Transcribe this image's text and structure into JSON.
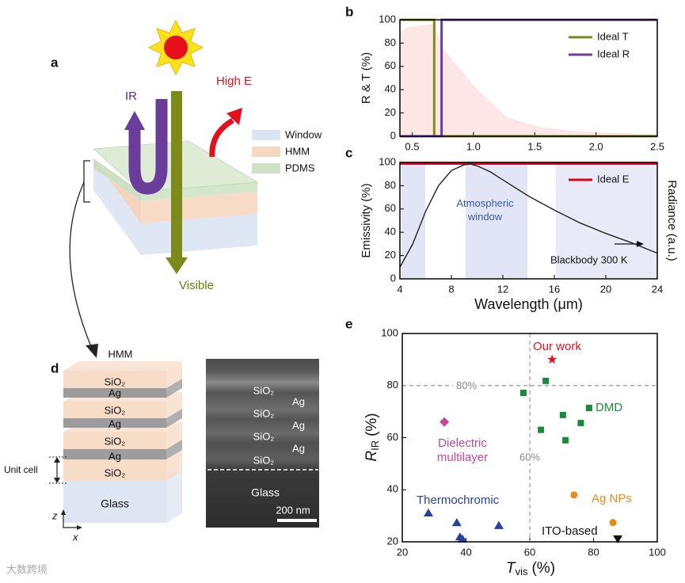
{
  "panel_labels": [
    "a",
    "b",
    "c",
    "d",
    "e"
  ],
  "diagram_a": {
    "ir": "IR",
    "high_e": "High E",
    "visible": "Visible",
    "legend": [
      "Window",
      "HMM",
      "PDMS"
    ]
  },
  "diagram_d": {
    "title": "HMM",
    "layers": [
      "SiO₂",
      "Ag",
      "SiO₂",
      "Ag",
      "SiO₂",
      "Ag",
      "SiO₂"
    ],
    "unit_cell": "Unit cell",
    "substrate": "Glass",
    "axes": [
      "z",
      "x"
    ],
    "sem_layers": [
      "SiO₂",
      "Ag",
      "SiO₂",
      "Ag",
      "SiO₂",
      "Ag",
      "SiO₂"
    ],
    "sem_substrate": "Glass",
    "scale_bar": "200 nm"
  },
  "watermark": "大数跨境",
  "chart_data": [
    {
      "type": "line",
      "y_label": "R & T (%)",
      "xlim": [
        0.4,
        2.5
      ],
      "xticks": [
        0.5,
        {
          "value": 1,
          "label": "1.0"
        },
        1.5,
        {
          "value": 2,
          "label": "2.0"
        },
        2.5
      ],
      "ylim": [
        0,
        100
      ],
      "yticks": [
        0,
        20,
        40,
        60,
        80,
        100
      ],
      "legend": "upper right",
      "series": [
        {
          "name": "Ideal T",
          "color": "#7b8a1a",
          "x": [
            0.4,
            0.68,
            0.68,
            2.5
          ],
          "values": [
            100,
            100,
            0,
            0
          ]
        },
        {
          "name": "Ideal R",
          "color": "#6b3fa0",
          "x": [
            0.4,
            0.74,
            0.74,
            2.5
          ],
          "values": [
            0,
            0,
            100,
            100
          ]
        }
      ]
    },
    {
      "type": "line",
      "x_label": "Wavelength (μm)",
      "y_label": "Emissivity (%)",
      "y2_label": "Radiance (a.u.)",
      "xlim": [
        4,
        24
      ],
      "xticks": [
        4,
        8,
        12,
        16,
        20,
        24
      ],
      "ylim": [
        0,
        100
      ],
      "yticks": [
        0,
        20,
        40,
        60,
        80,
        100
      ],
      "y2lim": [
        0,
        100
      ],
      "legend": "upper right",
      "annotation": "Atmospheric window",
      "series": [
        {
          "name": "Ideal E",
          "color": "#e0001b",
          "x": [
            4,
            24
          ],
          "values": [
            99,
            99
          ]
        },
        {
          "name": "Blackbody 300 K",
          "color": "#222222",
          "axis": "y2",
          "x": [
            4,
            5,
            6,
            7,
            8,
            9,
            9.5,
            10,
            11,
            12,
            14,
            16,
            18,
            20,
            22,
            24
          ],
          "values": [
            10,
            30,
            58,
            80,
            93,
            98,
            98.5,
            97,
            92,
            85,
            71,
            59,
            48,
            39,
            31,
            22
          ]
        }
      ]
    },
    {
      "type": "scatter",
      "x_label": {
        "main": "T",
        "sub": "vis",
        "unit": "(%)"
      },
      "y_label": {
        "main": "R",
        "sub": "IR",
        "unit": "(%)"
      },
      "xlim": [
        20,
        100
      ],
      "xticks": [
        20,
        40,
        60,
        80,
        100
      ],
      "ylim": [
        20,
        100
      ],
      "yticks": [
        20,
        40,
        60,
        80,
        100
      ],
      "reference_lines": [
        {
          "axis": "y",
          "value": 80,
          "label": "80%"
        },
        {
          "axis": "x",
          "value": 60,
          "label": "60%"
        }
      ],
      "series": [
        {
          "name": "Our work",
          "color": "#e0101e",
          "marker": "star",
          "x": [
            67
          ],
          "values": [
            90
          ]
        },
        {
          "name": "DMD",
          "color": "#1a8a3a",
          "marker": "square",
          "x": [
            58,
            63.5,
            65,
            70.4,
            71.2,
            76,
            78.6
          ],
          "values": [
            77.2,
            63,
            81.8,
            68.7,
            59,
            65.6,
            71.4
          ]
        },
        {
          "name": "Dielectric multilayer",
          "color": "#c0489a",
          "marker": "diamond",
          "x": [
            33.2
          ],
          "values": [
            66
          ]
        },
        {
          "name": "Ag NPs",
          "color": "#e88a1a",
          "marker": "circle",
          "x": [
            73.9,
            86.1
          ],
          "values": [
            38,
            27.4
          ]
        },
        {
          "name": "ITO-based",
          "color": "#111111",
          "marker": "triangle-down",
          "x": [
            87.6
          ],
          "values": [
            21.2
          ]
        },
        {
          "name": "Thermochromic",
          "color": "#2a3f9a",
          "marker": "triangle",
          "x": [
            28.2,
            37.1,
            38.1,
            38.9,
            50.3
          ],
          "values": [
            31,
            27.3,
            21.8,
            21,
            26.2
          ]
        }
      ]
    }
  ]
}
